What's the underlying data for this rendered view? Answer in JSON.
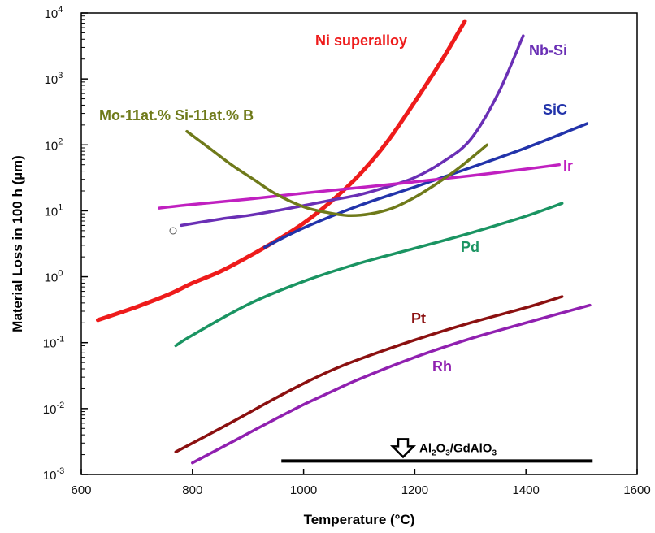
{
  "chart_data": {
    "type": "line",
    "title": "",
    "xlabel": "Temperature (°C)",
    "ylabel": "Material Loss in 100 h (µm)",
    "xlim": [
      600,
      1600
    ],
    "ylim": [
      0.001,
      10000
    ],
    "yscale": "log",
    "grid": false,
    "x_ticks": [
      "600",
      "800",
      "1000",
      "1200",
      "1400",
      "1600"
    ],
    "y_ticks": [
      {
        "base": "10",
        "exp": "-3"
      },
      {
        "base": "10",
        "exp": "-2"
      },
      {
        "base": "10",
        "exp": "-1"
      },
      {
        "base": "10",
        "exp": "0"
      },
      {
        "base": "10",
        "exp": "1"
      },
      {
        "base": "10",
        "exp": "2"
      },
      {
        "base": "10",
        "exp": "3"
      },
      {
        "base": "10",
        "exp": "4"
      }
    ],
    "series": [
      {
        "name": "Ni superalloy",
        "color": "#ee1b1b",
        "x": [
          630,
          700,
          760,
          800,
          850,
          900,
          950,
          1000,
          1050,
          1100,
          1150,
          1200,
          1250,
          1290
        ],
        "y": [
          0.22,
          0.35,
          0.55,
          0.8,
          1.2,
          2.0,
          3.5,
          6.5,
          14,
          35,
          110,
          450,
          2000,
          7500
        ]
      },
      {
        "name": "Nb-Si",
        "color": "#6a2fb5",
        "x": [
          780,
          850,
          900,
          950,
          1000,
          1050,
          1100,
          1150,
          1200,
          1250,
          1300,
          1350,
          1395
        ],
        "y": [
          6,
          7.5,
          8.5,
          10,
          12,
          14.5,
          17.5,
          23,
          32,
          55,
          120,
          600,
          4500
        ]
      },
      {
        "name": "SiC",
        "color": "#2233aa",
        "x": [
          930,
          1000,
          1100,
          1200,
          1300,
          1400,
          1510
        ],
        "y": [
          2.8,
          5.5,
          12,
          23,
          45,
          90,
          210
        ]
      },
      {
        "name": "Ir",
        "color": "#c020c0",
        "x": [
          740,
          800,
          900,
          1000,
          1100,
          1200,
          1300,
          1400,
          1460
        ],
        "y": [
          11,
          12.5,
          15,
          18.5,
          22.5,
          27.5,
          34,
          43,
          50
        ]
      },
      {
        "name": "Mo-11at.% Si-11at.% B",
        "color": "#6f7a1a",
        "x": [
          790,
          830,
          870,
          910,
          950,
          1000,
          1040,
          1080,
          1120,
          1160,
          1200,
          1240,
          1280,
          1330
        ],
        "y": [
          160,
          90,
          50,
          30,
          18,
          11.5,
          9.5,
          8.5,
          9,
          11,
          16,
          26,
          45,
          100
        ]
      },
      {
        "name": "Pd",
        "color": "#1a9462",
        "x": [
          770,
          800,
          900,
          1000,
          1100,
          1200,
          1300,
          1400,
          1465
        ],
        "y": [
          0.09,
          0.13,
          0.38,
          0.85,
          1.6,
          2.7,
          4.6,
          8.3,
          13
        ]
      },
      {
        "name": "Pt",
        "color": "#8b1010",
        "x": [
          770,
          850,
          900,
          950,
          1000,
          1050,
          1100,
          1200,
          1300,
          1400,
          1465
        ],
        "y": [
          0.0022,
          0.005,
          0.0085,
          0.0145,
          0.024,
          0.038,
          0.056,
          0.11,
          0.2,
          0.34,
          0.5
        ]
      },
      {
        "name": "Rh",
        "color": "#9020b0",
        "x": [
          800,
          850,
          900,
          950,
          1000,
          1050,
          1100,
          1200,
          1300,
          1400,
          1515
        ],
        "y": [
          0.0015,
          0.0025,
          0.0042,
          0.007,
          0.0115,
          0.018,
          0.028,
          0.06,
          0.115,
          0.2,
          0.37
        ]
      }
    ],
    "annotations": [
      {
        "text_parts": [
          "Al",
          "2",
          "O",
          "3",
          "/GdAlO",
          "3"
        ],
        "x_range": [
          960,
          1520
        ],
        "y": 0.0016,
        "marker": "hollow-down-arrow"
      }
    ]
  }
}
